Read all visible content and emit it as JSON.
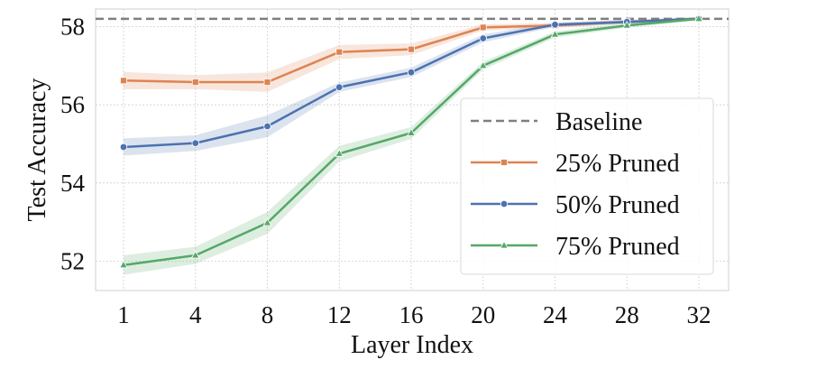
{
  "chart_data": {
    "type": "line",
    "xlabel": "Layer Index",
    "ylabel": "Test Accuracy",
    "x": [
      1,
      4,
      8,
      12,
      16,
      20,
      24,
      28,
      32
    ],
    "x_tick_labels": [
      "1",
      "4",
      "8",
      "12",
      "16",
      "20",
      "24",
      "28",
      "32"
    ],
    "y_ticks": [
      52,
      54,
      56,
      58
    ],
    "y_tick_labels": [
      "52",
      "54",
      "56",
      "58"
    ],
    "ylim": [
      51.25,
      58.45
    ],
    "grid": true,
    "legend_position": "right",
    "baseline": {
      "name": "Baseline",
      "value": 58.2,
      "color": "#7f7f7f"
    },
    "series": [
      {
        "name": "25% Pruned",
        "color": "#dd8452",
        "marker": "square",
        "values": [
          56.62,
          56.58,
          56.58,
          57.35,
          57.42,
          57.98,
          58.03,
          58.12,
          58.2
        ],
        "band": [
          0.22,
          0.18,
          0.25,
          0.18,
          0.15,
          0.08,
          0.06,
          0.05,
          0.04
        ]
      },
      {
        "name": "50% Pruned",
        "color": "#4c72b0",
        "marker": "circle",
        "values": [
          54.92,
          55.02,
          55.45,
          56.45,
          56.83,
          57.7,
          58.05,
          58.12,
          58.2
        ],
        "band": [
          0.22,
          0.2,
          0.28,
          0.12,
          0.12,
          0.1,
          0.06,
          0.05,
          0.04
        ]
      },
      {
        "name": "75% Pruned",
        "color": "#55a868",
        "marker": "triangle",
        "values": [
          51.9,
          52.15,
          52.98,
          54.75,
          55.28,
          57.0,
          57.8,
          58.03,
          58.2
        ],
        "band": [
          0.25,
          0.22,
          0.28,
          0.2,
          0.15,
          0.1,
          0.08,
          0.06,
          0.04
        ]
      }
    ]
  }
}
